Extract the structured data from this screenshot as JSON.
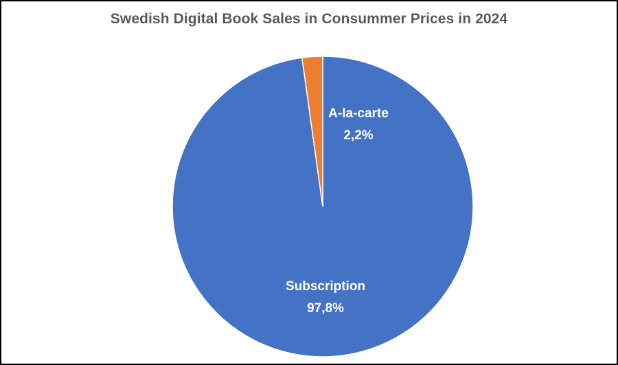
{
  "chart_data": {
    "type": "pie",
    "title": "Swedish Digital Book Sales in Consummer Prices in 2024",
    "slices": [
      {
        "label": "Subscription",
        "value": 97.8,
        "display": "97,8%",
        "color": "#4472C4"
      },
      {
        "label": "A-la-carte",
        "value": 2.2,
        "display": "2,2%",
        "color": "#ED7D31"
      }
    ],
    "legend": "none"
  }
}
